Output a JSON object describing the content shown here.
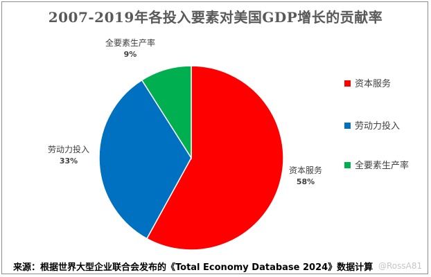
{
  "chart_data": {
    "type": "pie",
    "title": "2007-2019年各投入要素对美国GDP增长的贡献率",
    "categories": [
      "资本服务",
      "劳动力投入",
      "全要素生产率"
    ],
    "values": [
      58,
      33,
      9
    ],
    "value_labels": [
      "58%",
      "33%",
      "9%"
    ],
    "colors": [
      "#ff0000",
      "#0070c0",
      "#00b050"
    ],
    "legend": {
      "position": "right",
      "entries": [
        "资本服务",
        "劳动力投入",
        "全要素生产率"
      ]
    }
  },
  "source_note": "来源：根据世界大型企业联合会发布的《Total Economy Database 2024》数据计算",
  "watermark": "@RossA81"
}
